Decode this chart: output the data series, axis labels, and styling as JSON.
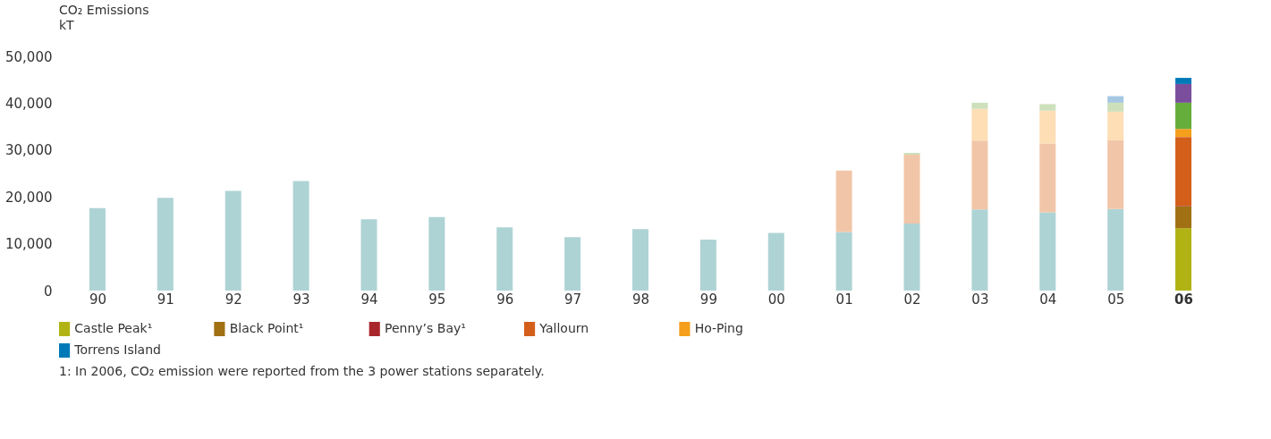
{
  "chart_data": {
    "type": "bar",
    "stacked": true,
    "title": "CO₂ Emissions",
    "ylabel": "kT",
    "categories": [
      "90",
      "91",
      "92",
      "93",
      "94",
      "95",
      "96",
      "97",
      "98",
      "99",
      "00",
      "01",
      "02",
      "03",
      "04",
      "05",
      "06"
    ],
    "ylim": [
      0,
      50000
    ],
    "yticks": [
      {
        "value": 0,
        "label": "0"
      },
      {
        "value": 10000,
        "label": "10,000"
      },
      {
        "value": 20000,
        "label": "20,000"
      },
      {
        "value": 30000,
        "label": "30,000"
      },
      {
        "value": 40000,
        "label": "40,000"
      },
      {
        "value": 50000,
        "label": "50,000"
      }
    ],
    "grid": false,
    "legend": "bottom",
    "series": [
      {
        "color": "#aed3d5",
        "values": [
          17600,
          19800,
          21300,
          23400,
          15200,
          15700,
          13500,
          11400,
          13100,
          10900,
          12300,
          12500,
          14300,
          17300,
          16700,
          17400,
          null
        ]
      },
      {
        "name": "Castle Peak¹",
        "color": "#b1b315",
        "values": [
          null,
          null,
          null,
          null,
          null,
          null,
          null,
          null,
          null,
          null,
          null,
          null,
          null,
          null,
          null,
          null,
          13300
        ]
      },
      {
        "name": "Black Point¹",
        "color": "#a07012",
        "values": [
          null,
          null,
          null,
          null,
          null,
          null,
          null,
          null,
          null,
          null,
          null,
          null,
          null,
          null,
          null,
          null,
          4700
        ]
      },
      {
        "name": "Penny’s Bay¹",
        "color": "#a8262b",
        "values": [
          null,
          null,
          null,
          null,
          null,
          null,
          null,
          null,
          null,
          null,
          null,
          null,
          null,
          null,
          null,
          null,
          100
        ]
      },
      {
        "name": "Yallourn",
        "color": "#d35f1b",
        "colors": [
          null,
          null,
          null,
          null,
          null,
          null,
          null,
          null,
          null,
          null,
          null,
          "#f1c6a8",
          "#f1c6a8",
          "#f1c6a8",
          "#f1c6a8",
          "#f1c6a8",
          "#d35f1b"
        ],
        "values": [
          null,
          null,
          null,
          null,
          null,
          null,
          null,
          null,
          null,
          null,
          null,
          13100,
          14700,
          14700,
          14700,
          14700,
          14700
        ]
      },
      {
        "name": "Ho-Ping",
        "color": "#f59f1c",
        "colors": [
          null,
          null,
          null,
          null,
          null,
          null,
          null,
          null,
          null,
          null,
          null,
          null,
          null,
          "#fddeb5",
          "#fddeb5",
          "#fddeb5",
          "#f59f1c"
        ],
        "values": [
          null,
          null,
          null,
          null,
          null,
          null,
          null,
          null,
          null,
          null,
          null,
          null,
          null,
          6800,
          7000,
          6100,
          1700
        ]
      },
      {
        "colors": [
          null,
          null,
          null,
          null,
          null,
          null,
          null,
          null,
          null,
          null,
          null,
          null,
          "#cde0bb",
          "#cde0bb",
          "#cde0bb",
          "#cde0bb",
          "#66ae3c"
        ],
        "values": [
          null,
          null,
          null,
          null,
          null,
          null,
          null,
          null,
          null,
          null,
          null,
          null,
          400,
          1300,
          1400,
          1900,
          5600
        ]
      },
      {
        "color": "#7a4e9c",
        "values": [
          null,
          null,
          null,
          null,
          null,
          null,
          null,
          null,
          null,
          null,
          null,
          null,
          null,
          null,
          null,
          null,
          4000
        ]
      },
      {
        "name": "Torrens Island",
        "color": "#0079b8",
        "colors": [
          null,
          null,
          null,
          null,
          null,
          null,
          null,
          null,
          null,
          null,
          null,
          null,
          null,
          null,
          null,
          "#a5c7e2",
          "#0079b8"
        ],
        "values": [
          null,
          null,
          null,
          null,
          null,
          null,
          null,
          null,
          null,
          null,
          null,
          null,
          null,
          null,
          null,
          1400,
          1300
        ]
      }
    ],
    "annotations": [
      "1: In 2006, CO₂ emission were reported from the 3 power stations separately."
    ]
  }
}
